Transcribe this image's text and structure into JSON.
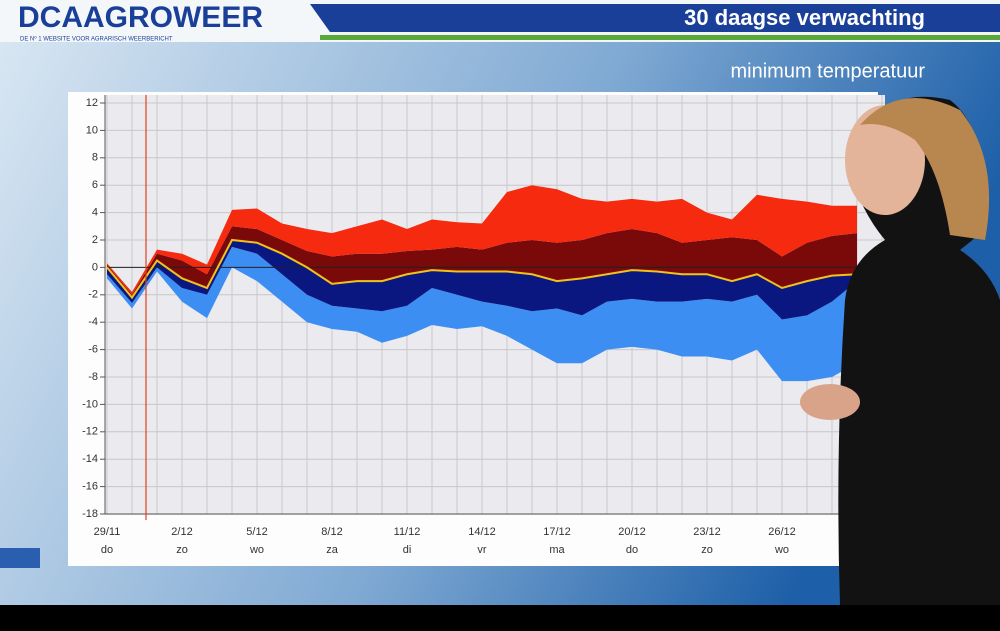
{
  "header": {
    "logo": "DCAAGROWEER",
    "tagline": "DE Nº 1 WEBSITE VOOR AGRARISCH WEERBERICHT",
    "title": "30 daagse verwachting"
  },
  "chart_data": {
    "type": "band",
    "title": "minimum temperatuur",
    "categories": [
      "29/11",
      null,
      null,
      "2/12",
      null,
      null,
      "5/12",
      null,
      null,
      "8/12",
      null,
      null,
      "11/12",
      null,
      null,
      "14/12",
      null,
      null,
      "17/12",
      null,
      null,
      "20/12",
      null,
      null,
      "23/12",
      null,
      null,
      "26/12",
      null,
      null,
      null
    ],
    "category_sublabels": [
      "do",
      null,
      null,
      "zo",
      null,
      null,
      "wo",
      null,
      null,
      "za",
      null,
      null,
      "di",
      null,
      null,
      "vr",
      null,
      null,
      "ma",
      null,
      null,
      "do",
      null,
      null,
      "zo",
      null,
      null,
      "wo",
      null,
      null,
      null
    ],
    "series": [
      {
        "values": [
          -0.8,
          -3,
          -0.3,
          -2.5,
          -3.7,
          0,
          -1,
          -2.5,
          -4,
          -4.5,
          -4.7,
          -5.5,
          -5,
          -4.2,
          -4.5,
          -4.3,
          -5,
          -6,
          -7,
          -7,
          -6,
          -5.8,
          -6,
          -6.5,
          -6.5,
          -6.8,
          -6,
          -8.3,
          -8.3,
          -8,
          -7
        ]
      },
      {
        "color": "#3d8ef2",
        "values": [
          -0.5,
          -2.6,
          0,
          -1.5,
          -2,
          1.5,
          1,
          -0.5,
          -2,
          -2.8,
          -3,
          -3.2,
          -2.8,
          -1.5,
          -2,
          -2.5,
          -2.8,
          -3.2,
          -3,
          -3.5,
          -2.5,
          -2.3,
          -2.5,
          -2.5,
          -2.3,
          -2.5,
          -2,
          -3.8,
          -3.5,
          -2.5,
          -1
        ]
      },
      {
        "color": "#0b1780",
        "line_color": "#f2c21a",
        "values": [
          0,
          -2.2,
          0.5,
          -0.8,
          -1.5,
          2,
          1.8,
          1,
          0,
          -1.2,
          -1,
          -1,
          -0.5,
          -0.2,
          -0.3,
          -0.3,
          -0.3,
          -0.5,
          -1,
          -0.8,
          -0.5,
          -0.2,
          -0.3,
          -0.5,
          -0.5,
          -1,
          -0.5,
          -1.5,
          -1,
          -0.6,
          -0.5
        ]
      },
      {
        "color": "#7a0a0a",
        "values": [
          0.2,
          -2,
          1,
          0.5,
          -0.5,
          3,
          2.8,
          2,
          1.2,
          0.8,
          1,
          1,
          1.2,
          1.3,
          1.5,
          1.3,
          1.8,
          2,
          1.8,
          2,
          2.5,
          2.8,
          2.5,
          1.8,
          2,
          2.2,
          2,
          0.8,
          1.8,
          2.3,
          2.5
        ]
      },
      {
        "color": "#f52a0e",
        "values": [
          0.3,
          -1.8,
          1.3,
          1,
          0.2,
          4.2,
          4.3,
          3.2,
          2.8,
          2.5,
          3,
          3.5,
          2.8,
          3.5,
          3.3,
          3.2,
          5.5,
          6,
          5.7,
          5,
          4.8,
          5,
          4.8,
          5,
          4,
          3.5,
          5.3,
          5,
          4.8,
          4.5,
          4.5
        ]
      }
    ],
    "ylim": [
      -18,
      12
    ],
    "yticks": [
      12,
      10,
      8,
      6,
      4,
      2,
      0,
      -2,
      -4,
      -6,
      -8,
      -10,
      -12,
      -14,
      -16,
      -18
    ],
    "grid": true
  }
}
